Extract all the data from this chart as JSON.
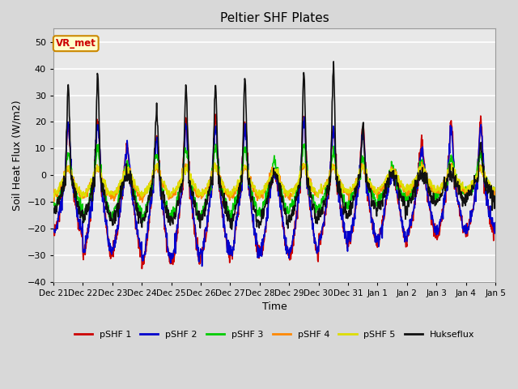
{
  "title": "Peltier SHF Plates",
  "xlabel": "Time",
  "ylabel": "Soil Heat Flux (W/m2)",
  "ylim": [
    -40,
    55
  ],
  "yticks": [
    -40,
    -30,
    -20,
    -10,
    0,
    10,
    20,
    30,
    40,
    50
  ],
  "fig_bg_color": "#d8d8d8",
  "plot_bg_color": "#e8e8e8",
  "series_colors": {
    "pSHF 1": "#cc0000",
    "pSHF 2": "#0000cc",
    "pSHF 3": "#00cc00",
    "pSHF 4": "#ff8800",
    "pSHF 5": "#dddd00",
    "Hukseflux": "#111111"
  },
  "annotation_text": "VR_met",
  "annotation_bg": "#ffffcc",
  "annotation_border": "#cc8800",
  "annotation_text_color": "#cc0000",
  "xtick_labels": [
    "Dec 21",
    "Dec 22",
    "Dec 23",
    "Dec 24",
    "Dec 25",
    "Dec 26",
    "Dec 27",
    "Dec 28",
    "Dec 29",
    "Dec 30",
    "Dec 31",
    "Jan 1",
    "Jan 2",
    "Jan 3",
    "Jan 4",
    "Jan 5"
  ],
  "grid_color": "#ffffff",
  "line_width": 1.2
}
